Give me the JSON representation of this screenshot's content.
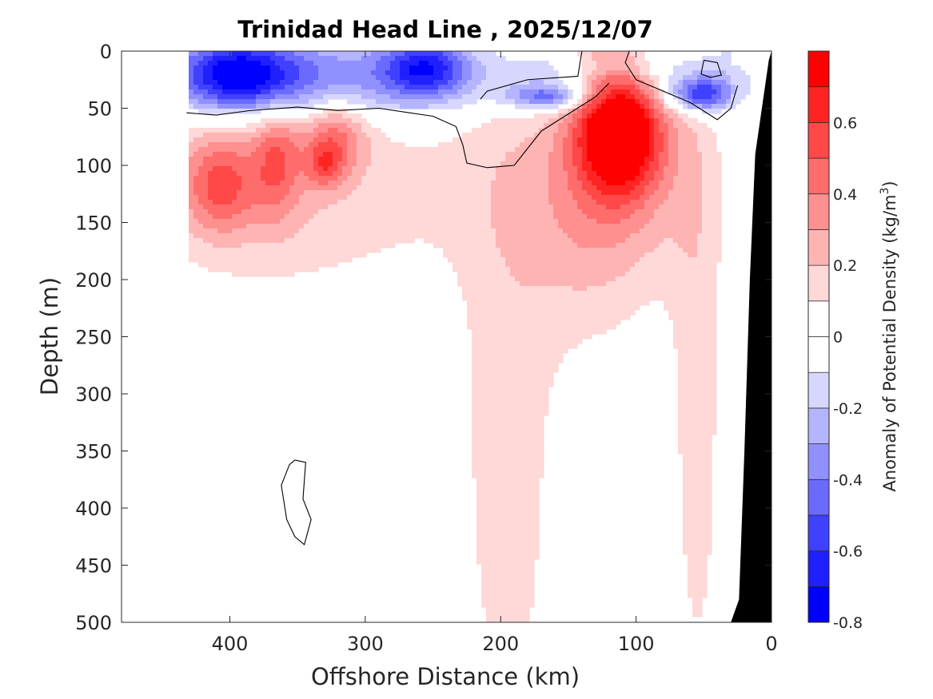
{
  "chart_data": {
    "type": "heatmap",
    "subtype": "filled-contour section",
    "title": "Trinidad Head Line , 2025/12/07",
    "xlabel": "Offshore Distance (km)",
    "ylabel": "Depth (m)",
    "xlim": [
      480,
      0
    ],
    "ylim": [
      0,
      500
    ],
    "x_reversed": true,
    "y_reversed": true,
    "xticks": [
      400,
      300,
      200,
      100,
      0
    ],
    "yticks": [
      0,
      50,
      100,
      150,
      200,
      250,
      300,
      350,
      400,
      450,
      500
    ],
    "colorbar": {
      "label": "Anomaly of Potential Density (kg/m",
      "label_superscript": "3",
      "label_close": ")",
      "range": [
        -0.8,
        0.8
      ],
      "step": 0.1,
      "ticks": [
        -0.8,
        -0.6,
        -0.4,
        -0.2,
        0,
        0.2,
        0.4,
        0.6
      ],
      "tick_labels": [
        "-0.8",
        "-0.6",
        "-0.4",
        "-0.2",
        "0",
        "0.2",
        "0.4",
        "0.6"
      ],
      "colors": [
        "#0000ff",
        "#2020ff",
        "#4040ff",
        "#6a6aff",
        "#9090ff",
        "#b4b4ff",
        "#d6d6ff",
        "#ffffff",
        "#ffffff",
        "#ffd8d8",
        "#ffb4b4",
        "#ff9090",
        "#ff6c6c",
        "#ff4848",
        "#ff2424",
        "#ff0000"
      ]
    },
    "contour_line_level": 0,
    "features": [
      {
        "name": "surface negative anomaly layer",
        "x_range_km": [
          430,
          30
        ],
        "depth_range_m": [
          0,
          55
        ],
        "min_value": -0.6
      },
      {
        "name": "subsurface positive core",
        "center_km": 112,
        "center_depth_m": 70,
        "max_value": 0.8
      },
      {
        "name": "offshore positive patches",
        "x_range_km": [
          430,
          320
        ],
        "depth_range_m": [
          55,
          190
        ],
        "max_value": 0.4
      },
      {
        "name": "bathymetry",
        "x_range_km": [
          30,
          0
        ]
      }
    ]
  }
}
